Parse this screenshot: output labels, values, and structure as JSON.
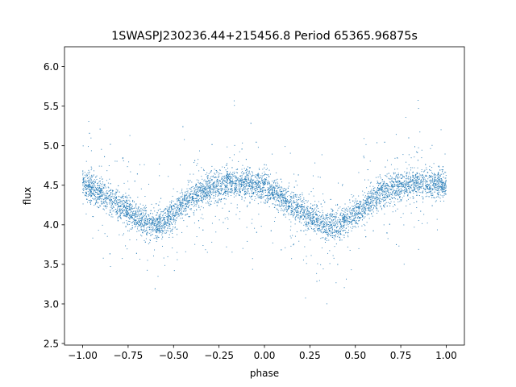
{
  "chart_data": {
    "type": "scatter",
    "title": "1SWASPJ230236.44+215456.8 Period 65365.96875s",
    "xlabel": "phase",
    "ylabel": "flux",
    "xlim": [
      -1.1,
      1.1
    ],
    "ylim": [
      2.48,
      6.25
    ],
    "xticks": [
      -1.0,
      -0.75,
      -0.5,
      -0.25,
      0.0,
      0.25,
      0.5,
      0.75,
      1.0
    ],
    "xtick_labels": [
      "−1.00",
      "−0.75",
      "−0.50",
      "−0.25",
      "0.00",
      "0.25",
      "0.50",
      "0.75",
      "1.00"
    ],
    "yticks": [
      2.5,
      3.0,
      3.5,
      4.0,
      4.5,
      5.0,
      5.5,
      6.0
    ],
    "ytick_labels": [
      "2.5",
      "3.0",
      "3.5",
      "4.0",
      "4.5",
      "5.0",
      "5.5",
      "6.0"
    ],
    "grid": false,
    "marker_color": "#1f77b4",
    "series": [
      {
        "x": [
          -1.0,
          -0.95,
          -0.9,
          -0.85,
          -0.8,
          -0.75,
          -0.7,
          -0.65,
          -0.6,
          -0.55,
          -0.5,
          -0.45,
          -0.4,
          -0.35,
          -0.3,
          -0.25,
          -0.2,
          -0.15,
          -0.1,
          -0.05,
          0.0,
          0.05,
          0.1,
          0.15,
          0.2,
          0.25,
          0.3,
          0.35,
          0.4,
          0.45,
          0.5,
          0.55,
          0.6,
          0.65,
          0.7,
          0.75,
          0.8,
          0.85,
          0.9,
          0.95,
          1.0
        ],
        "y": [
          4.52,
          4.47,
          4.4,
          4.33,
          4.25,
          4.17,
          4.1,
          4.03,
          4.0,
          4.05,
          4.15,
          4.25,
          4.34,
          4.42,
          4.47,
          4.5,
          4.52,
          4.53,
          4.53,
          4.5,
          4.47,
          4.4,
          4.33,
          4.25,
          4.17,
          4.1,
          4.03,
          4.0,
          4.0,
          4.05,
          4.15,
          4.25,
          4.34,
          4.42,
          4.47,
          4.5,
          4.52,
          4.53,
          4.53,
          4.52,
          4.52
        ]
      }
    ]
  }
}
